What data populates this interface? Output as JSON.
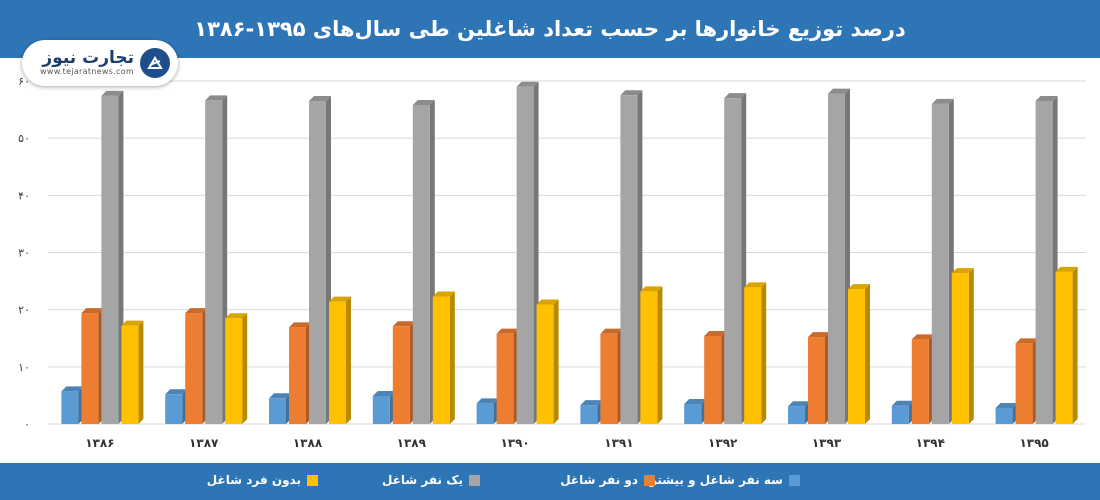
{
  "header": {
    "title": "درصد توزیع خانوارها بر حسب تعداد شاغلین طی سال‌های ۱۳۹۵-۱۳۸۶"
  },
  "logo": {
    "word": "تجارت نیوز",
    "url": "www.tejaratnews.com",
    "icon": "tejarat-news-logo-icon"
  },
  "chart_data": {
    "type": "bar",
    "title": "درصد توزیع خانوارها بر حسب تعداد شاغلین طی سال‌های ۱۳۹۵-۱۳۸۶",
    "xlabel": "",
    "ylabel": "",
    "ylim": [
      0,
      60
    ],
    "yticks": [
      0,
      10,
      20,
      30,
      40,
      50,
      60
    ],
    "ytick_labels": [
      "۰",
      "۱۰",
      "۲۰",
      "۳۰",
      "۴۰",
      "۵۰",
      "۶۰"
    ],
    "grid": true,
    "legend_position": "bottom",
    "categories": [
      "۱۳۸۶",
      "۱۳۸۷",
      "۱۳۸۸",
      "۱۳۸۹",
      "۱۳۹۰",
      "۱۳۹۱",
      "۱۳۹۲",
      "۱۳۹۳",
      "۱۳۹۴",
      "۱۳۹۵"
    ],
    "series": [
      {
        "name": "سه نفر شاغل و بیشتر",
        "color": "#5b9bd5",
        "values": [
          5.7,
          5.2,
          4.5,
          4.9,
          3.6,
          3.3,
          3.5,
          3.1,
          3.2,
          2.8
        ]
      },
      {
        "name": "دو نفر شاغل",
        "color": "#ed7d31",
        "values": [
          19.4,
          19.4,
          16.9,
          17.1,
          15.8,
          15.8,
          15.4,
          15.2,
          14.8,
          14.1
        ]
      },
      {
        "name": "یک نفر شاغل",
        "color": "#a5a5a5",
        "values": [
          57.4,
          56.6,
          56.5,
          55.8,
          59.0,
          57.5,
          57.0,
          57.8,
          56.0,
          56.5
        ]
      },
      {
        "name": "بدون فرد شاغل",
        "color": "#ffc000",
        "values": [
          17.2,
          18.5,
          21.4,
          22.3,
          20.9,
          23.2,
          23.9,
          23.6,
          26.4,
          26.6
        ]
      }
    ]
  }
}
